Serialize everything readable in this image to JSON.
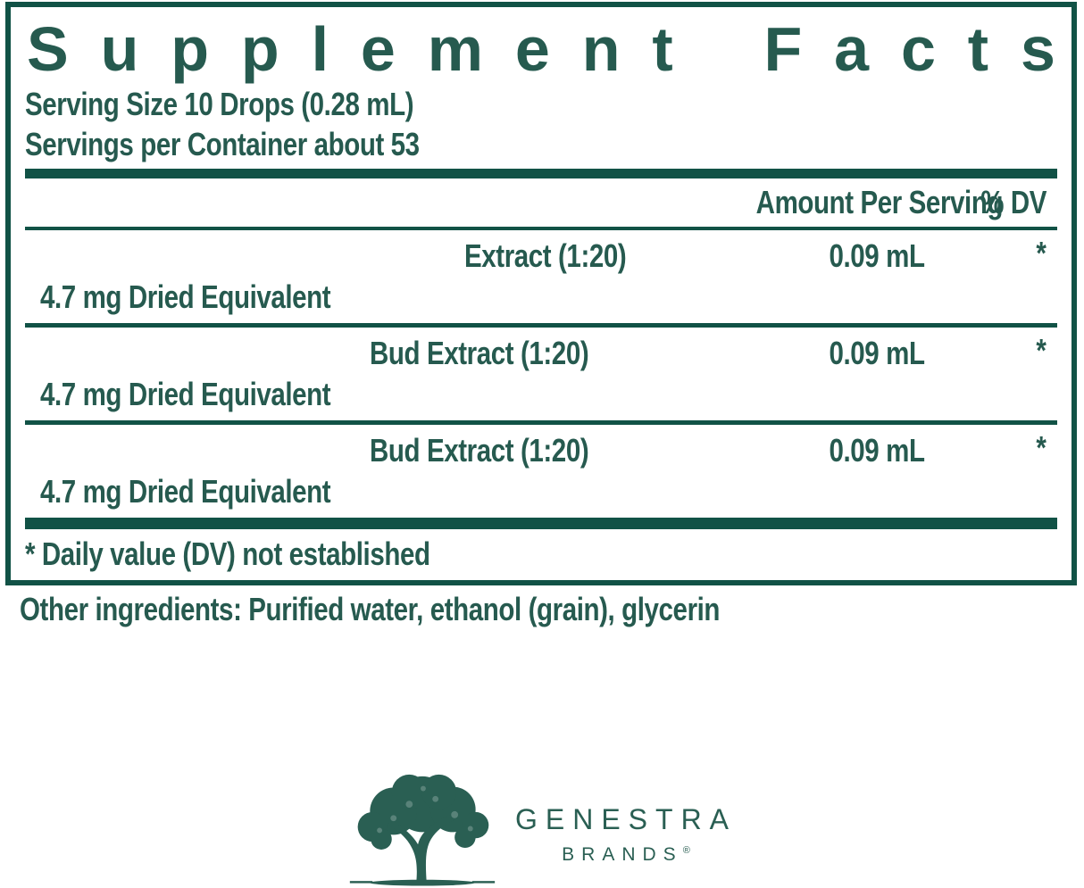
{
  "colors": {
    "teal_dark": "#115246",
    "teal_text": "#265a4f",
    "teal_logo": "#2a5f53"
  },
  "supplement_facts": {
    "title": "Supplement Facts",
    "serving_size": "Serving Size 10 Drops (0.28 mL)",
    "servings_per_container": "Servings per Container about 53",
    "header": {
      "amount": "Amount Per Serving",
      "dv": "% DV"
    },
    "rows": [
      {
        "name": "Extract (1:20)",
        "amount": "0.09 mL",
        "dv": "*",
        "detail": "4.7 mg Dried Equivalent"
      },
      {
        "name": "Bud Extract (1:20)",
        "amount": "0.09 mL",
        "dv": "*",
        "detail": "4.7 mg Dried Equivalent"
      },
      {
        "name": "Bud Extract (1:20)",
        "amount": "0.09 mL",
        "dv": "*",
        "detail": "4.7 mg Dried Equivalent"
      }
    ],
    "footnote": "* Daily value (DV) not established"
  },
  "other_ingredients": "Other ingredients: Purified water, ethanol (grain), glycerin",
  "logo": {
    "tree_icon": "tree-icon",
    "brand": "GENESTRA",
    "sub_brand": "BRANDS",
    "reg_mark": "®"
  }
}
